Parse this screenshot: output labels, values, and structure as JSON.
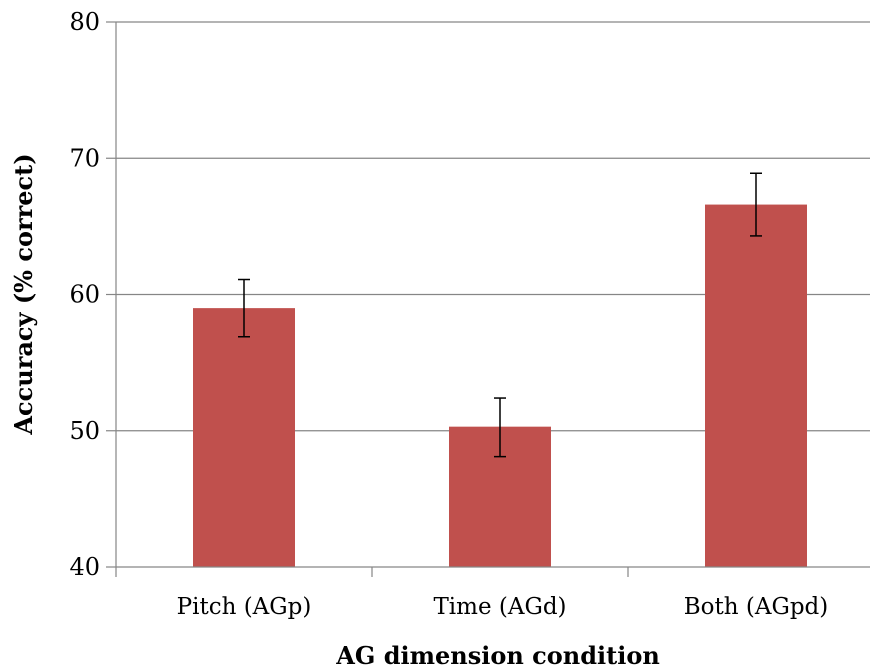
{
  "chart_data": {
    "type": "bar",
    "title": "",
    "xlabel": "AG dimension condition",
    "ylabel": "Accuracy (% correct)",
    "categories": [
      "Pitch (AGp)",
      "Time (AGd)",
      "Both (AGpd)"
    ],
    "values": [
      59.0,
      50.3,
      66.6
    ],
    "error_low": [
      56.9,
      48.1,
      64.3
    ],
    "error_high": [
      61.1,
      52.4,
      68.9
    ],
    "ylim": [
      40,
      80
    ],
    "yticks": [
      "40",
      "50",
      "60",
      "70",
      "80"
    ],
    "grid": "horizontal",
    "bar_color": "#c0504d",
    "gridline_color": "#868686"
  }
}
